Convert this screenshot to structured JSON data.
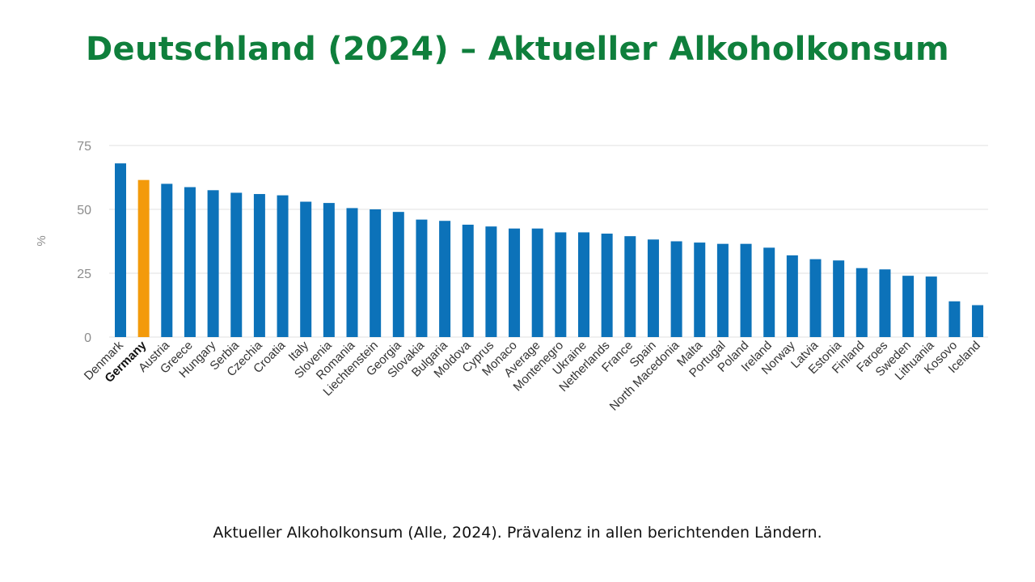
{
  "title": "Deutschland (2024) – Aktueller Alkoholkonsum",
  "caption": "Aktueller Alkoholkonsum (Alle, 2024). Prävalenz in allen berichtenden Ländern.",
  "colors": {
    "title": "#0f7f3c",
    "bar": "#0c72b9",
    "highlight_bar": "#f39a0b",
    "grid": "#e6e6e6",
    "axis_text": "#8c8c8c"
  },
  "chart_data": {
    "type": "bar",
    "ylabel": "%",
    "ylim": [
      0,
      75
    ],
    "yticks": [
      0,
      25,
      50,
      75
    ],
    "grid": true,
    "highlight": "Germany",
    "categories": [
      "Denmark",
      "Germany",
      "Austria",
      "Greece",
      "Hungary",
      "Serbia",
      "Czechia",
      "Croatia",
      "Italy",
      "Slovenia",
      "Romania",
      "Liechtenstein",
      "Georgia",
      "Slovakia",
      "Bulgaria",
      "Moldova",
      "Cyprus",
      "Monaco",
      "Average",
      "Montenegro",
      "Ukraine",
      "Netherlands",
      "France",
      "Spain",
      "North Macedonia",
      "Malta",
      "Portugal",
      "Poland",
      "Ireland",
      "Norway",
      "Latvia",
      "Estonia",
      "Finland",
      "Faroes",
      "Sweden",
      "Lithuania",
      "Kosovo",
      "Iceland"
    ],
    "values": [
      68,
      61.5,
      60,
      58.7,
      57.5,
      56.5,
      56,
      55.5,
      53,
      52.5,
      50.5,
      50,
      49,
      46,
      45.5,
      44,
      43.3,
      42.5,
      42.5,
      41,
      41,
      40.5,
      39.5,
      38.2,
      37.5,
      37,
      36.5,
      36.5,
      35,
      32,
      30.5,
      30,
      27,
      26.5,
      24,
      23.7,
      14,
      12.5
    ]
  }
}
